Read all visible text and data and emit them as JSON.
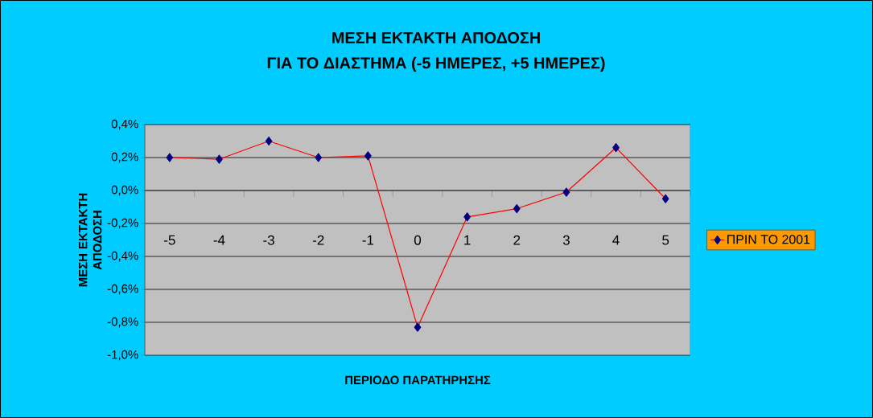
{
  "chart_data": {
    "type": "line",
    "title": "ΜΕΣΗ ΕΚΤΑΚΤΗ ΑΠΟΔΟΣΗ",
    "subtitle": "ΓΙΑ ΤΟ ΔΙΑΣΤΗΜΑ (-5 ΗΜΕΡΕΣ, +5 ΗΜΕΡΕΣ)",
    "xlabel": "ΠΕΡΙΟΔΟ ΠΑΡΑΤΗΡΗΣΗΣ",
    "ylabel": "ΜΕΣΗ ΕΚΤΑΚΤΗ ΑΠΟΔΟΣΗ",
    "categories": [
      "-5",
      "-4",
      "-3",
      "-2",
      "-1",
      "0",
      "1",
      "2",
      "3",
      "4",
      "5"
    ],
    "series": [
      {
        "name": "ΠΡΙΝ ΤΟ 2001",
        "color": "#ff0000",
        "values": [
          0.2,
          0.19,
          0.3,
          0.2,
          0.21,
          -0.83,
          -0.16,
          -0.11,
          -0.01,
          0.26,
          -0.05
        ]
      }
    ],
    "ylim": [
      -1.0,
      0.4
    ],
    "yticks": [
      {
        "value": -1.0,
        "label": "-1,0%"
      },
      {
        "value": -0.8,
        "label": "-0,8%"
      },
      {
        "value": -0.6,
        "label": "-0,6%"
      },
      {
        "value": -0.4,
        "label": "-0,4%"
      },
      {
        "value": -0.2,
        "label": "-0,2%"
      },
      {
        "value": 0.0,
        "label": "0,0%"
      },
      {
        "value": 0.2,
        "label": "0,2%"
      },
      {
        "value": 0.4,
        "label": "0,4%"
      }
    ],
    "grid": "y",
    "legend": "right",
    "marker": "diamond",
    "line_style": "solid"
  }
}
